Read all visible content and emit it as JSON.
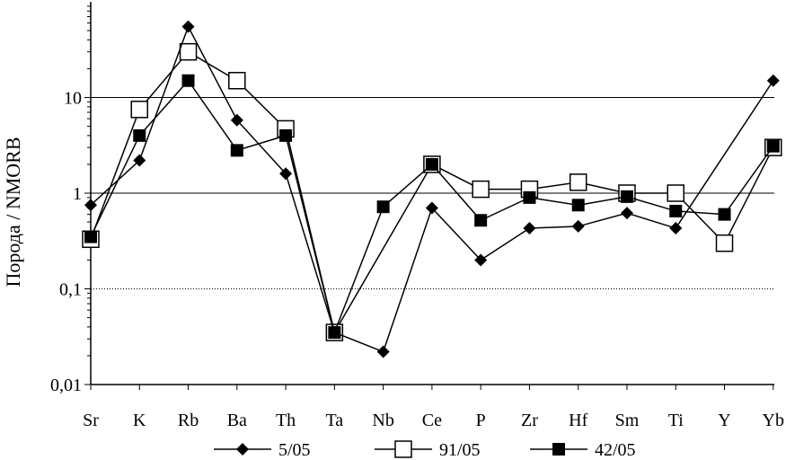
{
  "chart_data": {
    "type": "line",
    "title": "",
    "xlabel": "",
    "ylabel": "Порода / NMORB",
    "yscale": "log",
    "ylim": [
      0.01,
      100
    ],
    "yticks": [
      {
        "value": 0.01,
        "label": "0,01"
      },
      {
        "value": 0.1,
        "label": "0,1"
      },
      {
        "value": 1,
        "label": "1"
      },
      {
        "value": 10,
        "label": "10"
      }
    ],
    "grid": "horizontal",
    "legend_position": "bottom",
    "categories": [
      "Sr",
      "K",
      "Rb",
      "Ba",
      "Th",
      "Ta",
      "Nb",
      "Ce",
      "P",
      "Zr",
      "Hf",
      "Sm",
      "Ti",
      "Y",
      "Yb"
    ],
    "series": [
      {
        "name": "5/05",
        "marker": "diamond-filled",
        "values": [
          0.75,
          2.2,
          55,
          5.8,
          1.6,
          0.035,
          0.022,
          0.7,
          0.2,
          0.43,
          0.45,
          0.62,
          0.43,
          null,
          15
        ]
      },
      {
        "name": "91/05",
        "marker": "square-open",
        "values": [
          0.33,
          7.5,
          30,
          15,
          4.7,
          0.035,
          null,
          2.0,
          1.1,
          1.1,
          1.3,
          1.0,
          1.0,
          0.3,
          3.0
        ]
      },
      {
        "name": "42/05",
        "marker": "square-filled",
        "values": [
          0.35,
          4.0,
          15,
          2.8,
          4.0,
          0.035,
          0.72,
          2.0,
          0.52,
          0.9,
          0.75,
          0.92,
          0.65,
          0.6,
          3.1
        ]
      }
    ]
  }
}
